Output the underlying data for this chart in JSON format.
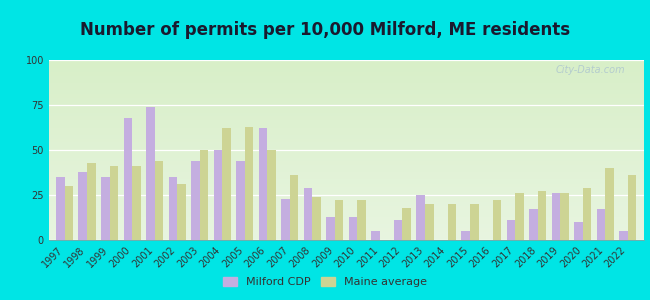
{
  "title": "Number of permits per 10,000 Milford, ME residents",
  "years": [
    1997,
    1998,
    1999,
    2000,
    2001,
    2002,
    2003,
    2004,
    2005,
    2006,
    2007,
    2008,
    2009,
    2010,
    2011,
    2012,
    2013,
    2014,
    2015,
    2016,
    2017,
    2018,
    2019,
    2020,
    2021,
    2022
  ],
  "milford": [
    35,
    38,
    35,
    68,
    74,
    35,
    44,
    50,
    44,
    62,
    23,
    29,
    13,
    13,
    5,
    11,
    25,
    0,
    5,
    0,
    11,
    17,
    26,
    10,
    17,
    5
  ],
  "maine": [
    30,
    43,
    41,
    41,
    44,
    31,
    50,
    62,
    63,
    50,
    36,
    24,
    22,
    22,
    0,
    18,
    20,
    20,
    20,
    22,
    26,
    27,
    26,
    29,
    40,
    36
  ],
  "milford_color": "#c4aee0",
  "maine_color": "#cdd494",
  "outer_bg": "#00e5e5",
  "plot_bg_top": "#e8f5e0",
  "plot_bg_bot": "#d8efc8",
  "ylim": [
    0,
    100
  ],
  "yticks": [
    0,
    25,
    50,
    75,
    100
  ],
  "legend_milford": "Milford CDP",
  "legend_maine": "Maine average",
  "title_fontsize": 12,
  "tick_fontsize": 7,
  "bar_width": 0.38,
  "watermark": "City-Data.com"
}
